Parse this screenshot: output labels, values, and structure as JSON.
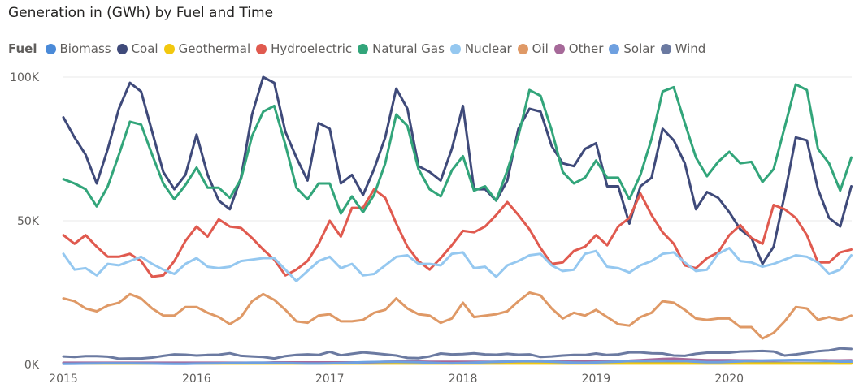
{
  "chart_data": {
    "type": "line",
    "title": "Generation in (GWh) by Fuel and Time",
    "legend": {
      "title": "Fuel",
      "placement": "top-left"
    },
    "xlabel": "",
    "ylabel": "",
    "ylim": [
      0,
      100000
    ],
    "yticks": [
      {
        "value": 0,
        "label": "0K"
      },
      {
        "value": 50000,
        "label": "50K"
      },
      {
        "value": 100000,
        "label": "100K"
      }
    ],
    "xlim": [
      2015.0,
      2020.92
    ],
    "xticks": [
      {
        "value": 2015,
        "label": "2015"
      },
      {
        "value": 2016,
        "label": "2016"
      },
      {
        "value": 2017,
        "label": "2017"
      },
      {
        "value": 2018,
        "label": "2018"
      },
      {
        "value": 2019,
        "label": "2019"
      },
      {
        "value": 2020,
        "label": "2020"
      }
    ],
    "grid": "horizontal",
    "x_start_year": 2015,
    "x_step_months": 1,
    "series": [
      {
        "name": "Biomass",
        "color": "#4a8ad8",
        "values": [
          500,
          500,
          500,
          500,
          500,
          500,
          500,
          500,
          500,
          500,
          500,
          500,
          500,
          500,
          500,
          500,
          500,
          500,
          500,
          500,
          500,
          500,
          500,
          500,
          500,
          500,
          500,
          500,
          500,
          500,
          500,
          500,
          500,
          500,
          500,
          500,
          500,
          500,
          500,
          500,
          500,
          500,
          500,
          500,
          500,
          500,
          500,
          500,
          500,
          500,
          500,
          500,
          500,
          500,
          500,
          500,
          500,
          500,
          500,
          500,
          500,
          500,
          500,
          500,
          500,
          500,
          500,
          500,
          500,
          500,
          500,
          500
        ]
      },
      {
        "name": "Coal",
        "color": "#3f4a7a",
        "values": [
          86000,
          79000,
          73000,
          63000,
          75000,
          89000,
          98000,
          95000,
          81000,
          67000,
          61000,
          66000,
          80000,
          66000,
          57000,
          54000,
          65000,
          87000,
          100000,
          98000,
          81000,
          72000,
          64000,
          84000,
          82000,
          63000,
          66000,
          59000,
          68000,
          79000,
          96000,
          89000,
          69000,
          67000,
          64000,
          75000,
          90000,
          61000,
          61000,
          57000,
          64000,
          82000,
          89000,
          88000,
          76000,
          70000,
          69000,
          75000,
          77000,
          62000,
          62000,
          49000,
          62000,
          65000,
          82000,
          78000,
          70000,
          54000,
          60000,
          58000,
          53000,
          47000,
          44000,
          35000,
          41000,
          59000,
          79000,
          78000,
          61000,
          51000,
          48000,
          62000
        ]
      },
      {
        "name": "Geothermal",
        "color": "#f2c80f",
        "values": [
          300,
          300,
          300,
          300,
          300,
          300,
          300,
          300,
          300,
          300,
          300,
          300,
          300,
          300,
          300,
          300,
          300,
          300,
          300,
          300,
          300,
          300,
          300,
          300,
          300,
          300,
          300,
          300,
          300,
          300,
          300,
          300,
          300,
          300,
          300,
          300,
          300,
          300,
          300,
          300,
          300,
          300,
          300,
          300,
          300,
          300,
          300,
          300,
          300,
          300,
          300,
          300,
          300,
          300,
          300,
          300,
          300,
          300,
          300,
          300,
          300,
          300,
          300,
          300,
          300,
          300,
          300,
          300,
          300,
          300,
          300,
          300
        ]
      },
      {
        "name": "Hydroelectric",
        "color": "#e05a4f",
        "values": [
          45000,
          42000,
          45000,
          41000,
          37500,
          37500,
          38500,
          36000,
          30500,
          31000,
          36000,
          43000,
          48000,
          44500,
          50500,
          48000,
          47500,
          44000,
          40000,
          36500,
          31000,
          33000,
          36000,
          42000,
          50000,
          44500,
          54500,
          54500,
          61000,
          58000,
          49000,
          41000,
          36000,
          33000,
          37000,
          41500,
          46500,
          46000,
          48000,
          52000,
          56500,
          52000,
          47000,
          40500,
          35000,
          35500,
          39500,
          41000,
          45000,
          41500,
          48000,
          51000,
          59500,
          52000,
          46000,
          42000,
          34500,
          33500,
          37000,
          39000,
          45000,
          48500,
          44000,
          42000,
          55500,
          54000,
          51000,
          45000,
          35500,
          35500,
          39000,
          40000
        ]
      },
      {
        "name": "Natural Gas",
        "color": "#32a57a",
        "values": [
          64500,
          63000,
          61000,
          55000,
          62000,
          73000,
          84500,
          83500,
          73000,
          63000,
          57500,
          62500,
          68500,
          61500,
          61500,
          58000,
          64500,
          79500,
          88000,
          90000,
          76500,
          61500,
          57500,
          63000,
          63000,
          52500,
          58500,
          53000,
          59000,
          70000,
          87000,
          83000,
          68000,
          61000,
          58500,
          67500,
          72500,
          60500,
          62000,
          57000,
          67500,
          79500,
          95500,
          93500,
          81500,
          67000,
          63000,
          65000,
          71000,
          65000,
          65000,
          57500,
          66000,
          78500,
          95000,
          96500,
          84000,
          72000,
          65500,
          70500,
          74000,
          70000,
          70500,
          63500,
          68000,
          82500,
          97500,
          95500,
          75000,
          70000,
          60500,
          72000
        ]
      },
      {
        "name": "Nuclear",
        "color": "#95c8f0",
        "values": [
          38500,
          33000,
          33500,
          31000,
          35000,
          34500,
          36000,
          37500,
          35000,
          33000,
          31500,
          35000,
          37000,
          34000,
          33500,
          34000,
          36000,
          36500,
          37000,
          37000,
          33000,
          29000,
          32500,
          36000,
          37500,
          33500,
          35000,
          31000,
          31500,
          34500,
          37500,
          38000,
          35000,
          35000,
          34500,
          38500,
          39000,
          33500,
          34000,
          30500,
          34500,
          36000,
          38000,
          38500,
          34500,
          32500,
          33000,
          38500,
          39500,
          34000,
          33500,
          32000,
          34500,
          36000,
          38500,
          39000,
          35500,
          32500,
          33000,
          38500,
          40500,
          36000,
          35500,
          34000,
          35000,
          36500,
          38000,
          37500,
          35500,
          31500,
          33000,
          38000
        ]
      },
      {
        "name": "Oil",
        "color": "#df9966",
        "values": [
          23000,
          22000,
          19500,
          18500,
          20500,
          21500,
          24500,
          23000,
          19500,
          17000,
          17000,
          20000,
          20000,
          18000,
          16500,
          14000,
          16500,
          22000,
          24500,
          22500,
          19000,
          15000,
          14500,
          17000,
          17500,
          15000,
          15000,
          15500,
          18000,
          19000,
          23000,
          19500,
          17500,
          17000,
          14500,
          16000,
          21500,
          16500,
          17000,
          17500,
          18500,
          22000,
          25000,
          24000,
          19500,
          16000,
          18000,
          17000,
          19000,
          16500,
          14000,
          13500,
          16500,
          18000,
          22000,
          21500,
          19000,
          16000,
          15500,
          16000,
          16000,
          13000,
          13000,
          9000,
          11000,
          15000,
          20000,
          19500,
          15500,
          16500,
          15500,
          17000
        ]
      },
      {
        "name": "Other",
        "color": "#a66999",
        "values": [
          600,
          600,
          600,
          600,
          600,
          600,
          600,
          600,
          600,
          600,
          600,
          600,
          600,
          600,
          600,
          600,
          600,
          600,
          600,
          700,
          700,
          700,
          700,
          700,
          700,
          700,
          700,
          700,
          800,
          900,
          1000,
          1100,
          1000,
          900,
          900,
          900,
          900,
          900,
          900,
          900,
          1000,
          1100,
          1200,
          1300,
          1200,
          1100,
          1000,
          1000,
          1100,
          1100,
          1200,
          1300,
          1500,
          1700,
          1900,
          2000,
          1800,
          1600,
          1500,
          1500,
          1500,
          1400,
          1400,
          1300,
          1300,
          1400,
          1500,
          1500,
          1500,
          1400,
          1400,
          1500
        ]
      },
      {
        "name": "Solar",
        "color": "#6ea0e0",
        "values": [
          200,
          250,
          300,
          350,
          400,
          400,
          400,
          350,
          300,
          250,
          200,
          200,
          300,
          350,
          400,
          500,
          550,
          600,
          600,
          550,
          500,
          400,
          300,
          300,
          400,
          500,
          650,
          750,
          850,
          900,
          900,
          850,
          750,
          600,
          450,
          400,
          500,
          650,
          800,
          900,
          1000,
          1100,
          1100,
          1050,
          950,
          800,
          650,
          600,
          700,
          850,
          1000,
          1150,
          1250,
          1300,
          1300,
          1250,
          1150,
          950,
          800,
          750,
          900,
          1050,
          1250,
          1350,
          1450,
          1500,
          1550,
          1500,
          1400,
          1200,
          1000,
          1000
        ]
      },
      {
        "name": "Wind",
        "color": "#6b7aa1",
        "values": [
          2800,
          2600,
          2900,
          2900,
          2700,
          2000,
          2100,
          2100,
          2400,
          3000,
          3500,
          3400,
          3100,
          3300,
          3400,
          3900,
          3000,
          2800,
          2600,
          2100,
          2900,
          3300,
          3500,
          3300,
          4400,
          3200,
          3700,
          4200,
          3900,
          3500,
          3100,
          2300,
          2200,
          2800,
          3800,
          3500,
          3600,
          3900,
          3500,
          3400,
          3700,
          3400,
          3500,
          2600,
          2800,
          3100,
          3300,
          3300,
          3800,
          3300,
          3500,
          4200,
          4200,
          3900,
          3800,
          3100,
          3000,
          3700,
          4100,
          4100,
          4100,
          4500,
          4600,
          4700,
          4500,
          3100,
          3500,
          4000,
          4600,
          4900,
          5600,
          5400
        ]
      }
    ]
  }
}
